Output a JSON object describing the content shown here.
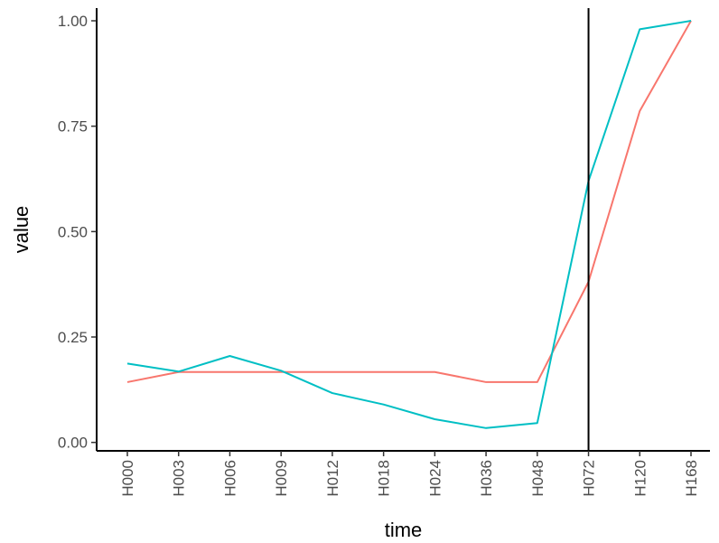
{
  "chart_data": {
    "type": "line",
    "xlabel": "time",
    "ylabel": "value",
    "categories": [
      "H000",
      "H003",
      "H006",
      "H009",
      "H012",
      "H018",
      "H024",
      "H036",
      "H048",
      "H072",
      "H120",
      "H168"
    ],
    "ylim": [
      -0.02,
      1.03
    ],
    "yticks": [
      0.0,
      0.25,
      0.5,
      0.75,
      1.0
    ],
    "ytick_labels": [
      "0.00",
      "0.25",
      "0.50",
      "0.75",
      "1.00"
    ],
    "grid": false,
    "legend": "none",
    "series": [
      {
        "color": "#F8766D",
        "values": [
          0.143,
          0.167,
          0.167,
          0.167,
          0.167,
          0.167,
          0.167,
          0.143,
          0.143,
          0.381,
          0.786,
          1.0
        ]
      },
      {
        "color": "#00BFC4",
        "values": [
          0.187,
          0.168,
          0.205,
          0.17,
          0.117,
          0.09,
          0.055,
          0.034,
          0.046,
          0.62,
          0.98,
          1.0
        ]
      }
    ],
    "vline": {
      "x": "H072",
      "color": "#000000"
    }
  }
}
